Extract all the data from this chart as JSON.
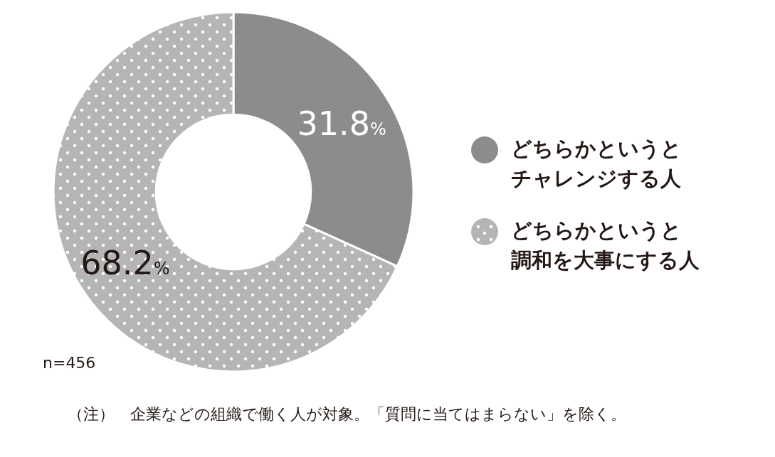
{
  "chart_data": {
    "type": "donut",
    "categories": [
      "どちらかというとチャレンジする人",
      "どちらかというと調和を大事にする人"
    ],
    "values": [
      31.8,
      68.2
    ],
    "colors": [
      "#8c8c8c",
      "#b5b5b5"
    ],
    "value_labels": [
      "31.8%",
      "68.2%"
    ],
    "legend": "right",
    "annotations": [
      "n=456",
      "（注）　企業などの組織で働く人が対象。「質問に当てはまらない」を除く。"
    ]
  }
}
